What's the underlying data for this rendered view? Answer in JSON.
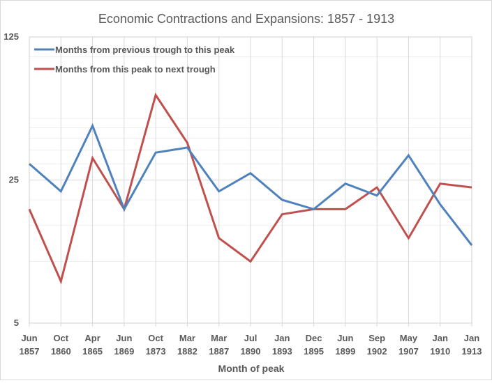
{
  "chart_data": {
    "type": "line",
    "title": "Economic Contractions and Expansions: 1857 - 1913",
    "xlabel": "Month of peak",
    "ylabel": "",
    "yscale": "log",
    "ylog_base": 5,
    "ylim": [
      5,
      125
    ],
    "yticks": [
      5,
      25,
      125
    ],
    "y_minor_gridlines": [
      10,
      15,
      20,
      30,
      35,
      40,
      45,
      50,
      100
    ],
    "grid": true,
    "legend_position": "top-left",
    "categories": [
      [
        "Jun",
        "1857"
      ],
      [
        "Oct",
        "1860"
      ],
      [
        "Apr",
        "1865"
      ],
      [
        "Jun",
        "1869"
      ],
      [
        "Oct",
        "1873"
      ],
      [
        "Mar",
        "1882"
      ],
      [
        "Mar",
        "1887"
      ],
      [
        "Jul",
        "1890"
      ],
      [
        "Jan",
        "1893"
      ],
      [
        "Dec",
        "1895"
      ],
      [
        "Jun",
        "1899"
      ],
      [
        "Sep",
        "1902"
      ],
      [
        "May",
        "1907"
      ],
      [
        "Jan",
        "1910"
      ],
      [
        "Jan",
        "1913"
      ]
    ],
    "series": [
      {
        "name": "Months from previous trough to this peak",
        "color": "#4f81bd",
        "values": [
          30,
          22,
          46,
          18,
          34,
          36,
          22,
          27,
          20,
          18,
          24,
          21,
          33,
          19,
          12
        ]
      },
      {
        "name": "Months from this peak to next trough",
        "color": "#c0504d",
        "values": [
          18,
          8,
          32,
          18,
          65,
          38,
          13,
          10,
          17,
          18,
          18,
          23,
          13,
          24,
          23
        ]
      }
    ]
  }
}
